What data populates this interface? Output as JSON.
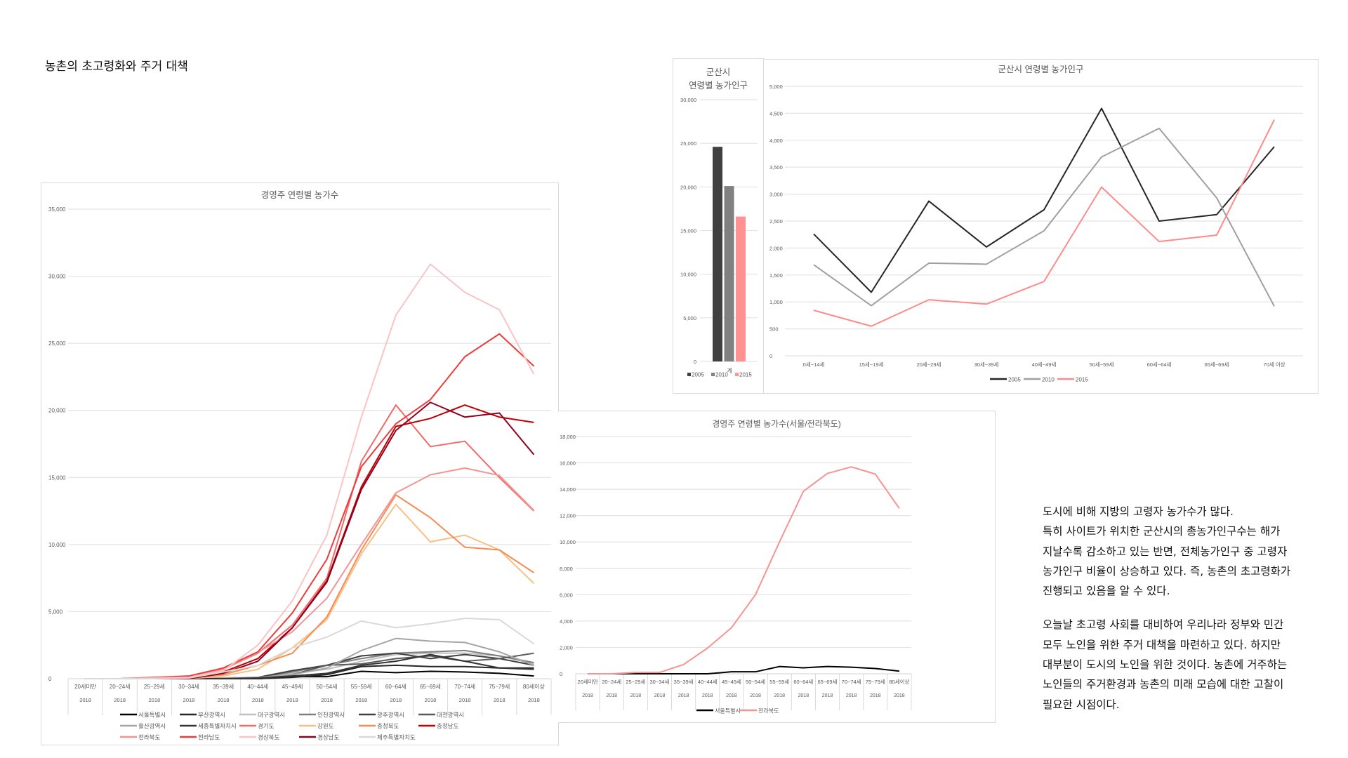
{
  "page": {
    "title": "농촌의 초고령화와 주거 대책",
    "description": {
      "paragraph1": [
        "도시에 비해 지방의 고령자 농가수가 많다.",
        "특히 사이트가 위치한 군산시의 총농가인구수는 해가",
        "지날수록 감소하고 있는 반면, 전체농가인구 중 고령자",
        "농가인구 비율이 상승하고 있다. 즉, 농촌의 초고령화가",
        "진행되고 있음을 알 수 있다."
      ],
      "paragraph2": [
        "오늘날 초고령 사회를 대비하여 우리나라 정부와 민간",
        "모두 노인을 위한 주거 대책을 마련하고 있다. 하지만",
        "대부분이 도시의 노인을 위한 것이다. 농촌에 거주하는",
        "노인들의 주거환경과 농촌의 미래 모습에 대한 고찰이",
        "필요한 시점이다."
      ]
    }
  },
  "chart_data": [
    {
      "id": "farm-households-by-age",
      "type": "line",
      "title": "경영주 연령별 농가수",
      "xlabel": "",
      "ylabel": "",
      "ylim": [
        0,
        35000
      ],
      "yticks": [
        0,
        5000,
        10000,
        15000,
        20000,
        25000,
        30000,
        35000
      ],
      "ytick_labels": [
        "0",
        "5,000",
        "10,000",
        "15,000",
        "20,000",
        "25,000",
        "30,000",
        "35,000"
      ],
      "grid": true,
      "legend": "bottom",
      "categories": [
        "20세미만",
        "20~24세",
        "25~29세",
        "30~34세",
        "35~39세",
        "40~44세",
        "45~49세",
        "50~54세",
        "55~59세",
        "60~64세",
        "65~69세",
        "70~74세",
        "75~79세",
        "80세이상"
      ],
      "category_sublabel": "2018",
      "series": [
        {
          "name": "서울특별시",
          "color": "#000000",
          "values": [
            0,
            0,
            0,
            0,
            0,
            0,
            150,
            150,
            550,
            450,
            550,
            500,
            400,
            200
          ]
        },
        {
          "name": "부산광역시",
          "color": "#262626",
          "values": [
            0,
            0,
            0,
            0,
            0,
            0,
            100,
            300,
            900,
            1000,
            900,
            900,
            800,
            800
          ]
        },
        {
          "name": "대구광역시",
          "color": "#bfbfbf",
          "values": [
            0,
            0,
            0,
            0,
            0,
            100,
            400,
            700,
            1300,
            1800,
            1900,
            1900,
            1700,
            1100
          ]
        },
        {
          "name": "인천광역시",
          "color": "#808080",
          "values": [
            0,
            0,
            0,
            0,
            50,
            100,
            500,
            1000,
            1500,
            1900,
            2000,
            2100,
            1700,
            1200
          ]
        },
        {
          "name": "광주광역시",
          "color": "#404040",
          "values": [
            0,
            0,
            0,
            0,
            0,
            100,
            600,
            1000,
            1700,
            1900,
            1500,
            1800,
            1500,
            1000
          ]
        },
        {
          "name": "대전광역시",
          "color": "#595959",
          "values": [
            0,
            0,
            0,
            0,
            0,
            50,
            300,
            1000,
            1100,
            1500,
            1700,
            1300,
            1500,
            1900
          ]
        },
        {
          "name": "울산광역시",
          "color": "#a6a6a6",
          "values": [
            0,
            0,
            0,
            0,
            50,
            100,
            300,
            800,
            2100,
            3000,
            2800,
            2700,
            2000,
            1000
          ]
        },
        {
          "name": "세종특별자치시",
          "color": "#333333",
          "values": [
            0,
            0,
            0,
            0,
            0,
            50,
            200,
            400,
            1000,
            1300,
            1800,
            1300,
            800,
            700
          ]
        },
        {
          "name": "경기도",
          "color": "#f26b6b",
          "values": [
            0,
            0,
            50,
            100,
            700,
            1900,
            4000,
            7500,
            16200,
            20400,
            17300,
            17700,
            15000,
            12500
          ]
        },
        {
          "name": "강원도",
          "color": "#fbbf85",
          "values": [
            0,
            0,
            0,
            0,
            200,
            700,
            2300,
            4400,
            9300,
            13000,
            10200,
            10700,
            9600,
            7100
          ]
        },
        {
          "name": "충청북도",
          "color": "#f58d55",
          "values": [
            0,
            0,
            0,
            50,
            300,
            1000,
            1900,
            4600,
            9600,
            13700,
            12000,
            9800,
            9600,
            7900
          ]
        },
        {
          "name": "충청남도",
          "color": "#c00000",
          "values": [
            0,
            0,
            0,
            50,
            500,
            1500,
            3800,
            7300,
            14300,
            18800,
            19400,
            20400,
            19500,
            19100
          ]
        },
        {
          "name": "전라북도",
          "color": "#f79393",
          "values": [
            0,
            0,
            100,
            100,
            700,
            1950,
            3500,
            6000,
            10000,
            13850,
            15200,
            15700,
            15150,
            12550
          ]
        },
        {
          "name": "전라남도",
          "color": "#ee3b3b",
          "values": [
            0,
            0,
            100,
            200,
            800,
            2000,
            4900,
            8900,
            15800,
            19000,
            20800,
            24000,
            25700,
            23300
          ]
        },
        {
          "name": "경상북도",
          "color": "#fbc4c4",
          "values": [
            0,
            0,
            50,
            100,
            600,
            2500,
            5800,
            10700,
            19500,
            27100,
            30900,
            28800,
            27500,
            22700
          ]
        },
        {
          "name": "경상남도",
          "color": "#900020",
          "values": [
            0,
            0,
            0,
            0,
            400,
            1300,
            3800,
            7200,
            14100,
            18500,
            20600,
            19500,
            19800,
            16700
          ]
        },
        {
          "name": "제주특별자치도",
          "color": "#d9d9d9",
          "values": [
            0,
            0,
            0,
            50,
            500,
            1000,
            2300,
            3100,
            4300,
            3800,
            4100,
            4500,
            4400,
            2600
          ]
        }
      ]
    },
    {
      "id": "farm-households-seoul-jeonbuk",
      "type": "line",
      "title": "경영주 연령별 농가수(서울/전라북도)",
      "xlabel": "",
      "ylabel": "",
      "ylim": [
        0,
        18000
      ],
      "yticks": [
        0,
        2000,
        4000,
        6000,
        8000,
        10000,
        12000,
        14000,
        16000,
        18000
      ],
      "ytick_labels": [
        "0",
        "2,000",
        "4,000",
        "6,000",
        "8,000",
        "10,000",
        "12,000",
        "14,000",
        "16,000",
        "18,000"
      ],
      "grid": true,
      "legend": "bottom",
      "categories": [
        "20세미만",
        "20~24세",
        "25~29세",
        "30~34세",
        "35~39세",
        "40~44세",
        "45~49세",
        "50~54세",
        "55~59세",
        "60~64세",
        "65~69세",
        "70~74세",
        "75~79세",
        "80세이상"
      ],
      "category_sublabel": "2018",
      "series": [
        {
          "name": "서울특별시",
          "color": "#000000",
          "values": [
            0,
            0,
            0,
            0,
            0,
            0,
            150,
            150,
            550,
            450,
            550,
            500,
            400,
            200
          ]
        },
        {
          "name": "전라북도",
          "color": "#f79393",
          "values": [
            0,
            0,
            100,
            100,
            700,
            1950,
            3500,
            6000,
            10000,
            13850,
            15200,
            15700,
            15150,
            12550
          ]
        }
      ]
    },
    {
      "id": "gunsan-total-farm-population",
      "type": "bar",
      "title": "군산시\n연령별 농가인구",
      "title_lines": [
        "군산시",
        "연령별 농가인구"
      ],
      "xlabel": "",
      "ylabel": "",
      "ylim": [
        0,
        30000
      ],
      "yticks": [
        0,
        5000,
        10000,
        15000,
        20000,
        25000,
        30000
      ],
      "ytick_labels": [
        "0",
        "5,000",
        "10,000",
        "15,000",
        "20,000",
        "25,000",
        "30,000"
      ],
      "grid": true,
      "legend": "bottom",
      "categories": [
        "계"
      ],
      "series": [
        {
          "name": "2005",
          "color": "#404040",
          "values": [
            24600
          ]
        },
        {
          "name": "2010",
          "color": "#808080",
          "values": [
            20100
          ]
        },
        {
          "name": "2015",
          "color": "#ff9191",
          "values": [
            16600
          ]
        }
      ]
    },
    {
      "id": "gunsan-farm-population-by-age",
      "type": "line",
      "title": "군산시 연령별 농가인구",
      "xlabel": "",
      "ylabel": "",
      "ylim": [
        0,
        5000
      ],
      "yticks": [
        0,
        500,
        1000,
        1500,
        2000,
        2500,
        3000,
        3500,
        4000,
        4500,
        5000
      ],
      "ytick_labels": [
        "0",
        "500",
        "1,000",
        "1,500",
        "2,000",
        "2,500",
        "3,000",
        "3,500",
        "4,000",
        "4,500",
        "5,000"
      ],
      "grid": true,
      "legend": "bottom",
      "categories": [
        "0세~14세",
        "15세~19세",
        "20세~29세",
        "30세~39세",
        "40세~49세",
        "50세~59세",
        "60세~64세",
        "65세~69세",
        "70세 이상"
      ],
      "series": [
        {
          "name": "2005",
          "color": "#262626",
          "values": [
            2260,
            1180,
            2870,
            2020,
            2710,
            4590,
            2500,
            2620,
            3880
          ]
        },
        {
          "name": "2010",
          "color": "#a0a0a0",
          "values": [
            1690,
            930,
            1720,
            1700,
            2320,
            3690,
            4220,
            2930,
            920
          ]
        },
        {
          "name": "2015",
          "color": "#ff8a8a",
          "values": [
            845,
            550,
            1040,
            960,
            1380,
            3130,
            2120,
            2240,
            4380
          ]
        }
      ]
    }
  ]
}
